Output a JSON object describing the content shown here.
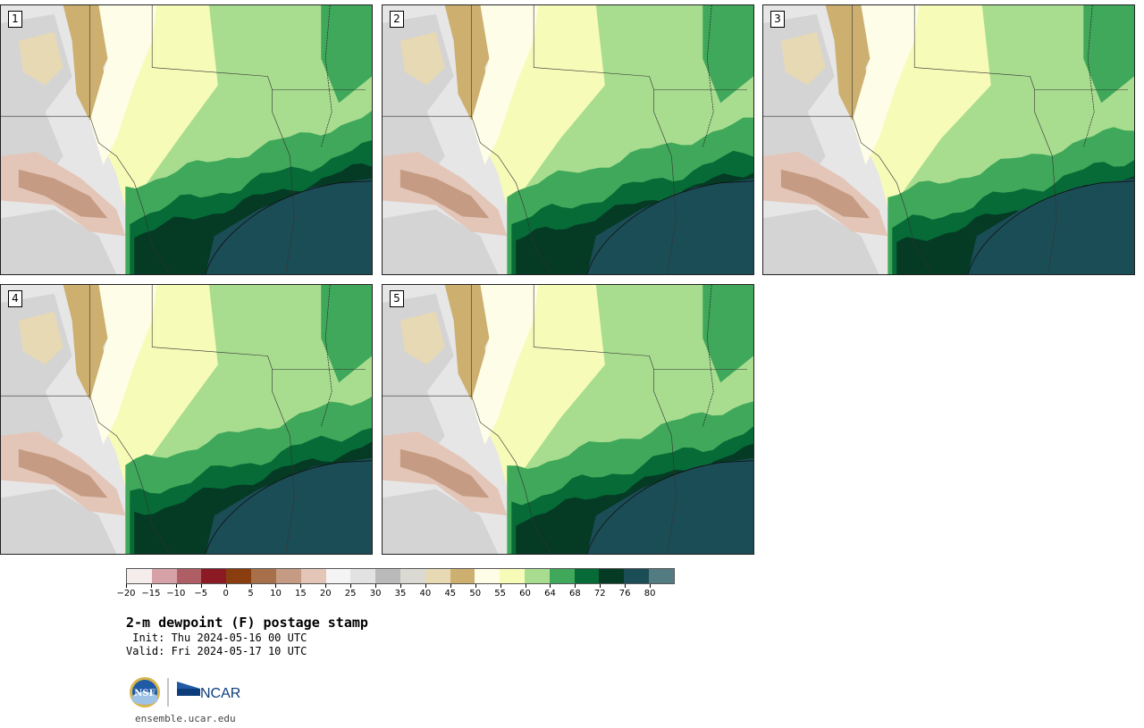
{
  "panels": [
    {
      "label": "1",
      "variant": 0
    },
    {
      "label": "2",
      "variant": 1
    },
    {
      "label": "3",
      "variant": 2
    },
    {
      "label": "4",
      "variant": 3
    },
    {
      "label": "5",
      "variant": 4
    }
  ],
  "colorbar": {
    "colors": [
      "#f5ecec",
      "#d6a2a8",
      "#b05e66",
      "#8b1a25",
      "#8a3d0f",
      "#a8704a",
      "#c59c83",
      "#e3c6b8",
      "#f4f4f4",
      "#e2e2e2",
      "#bababa",
      "#dadad2",
      "#e6d9b3",
      "#cdb06f",
      "#fdfde8",
      "#f7fbb8",
      "#a8dd90",
      "#40a85a",
      "#066b36",
      "#053a25",
      "#1b4d57",
      "#527c82"
    ],
    "ticks": [
      "−20",
      "−15",
      "−10",
      "−5",
      "0",
      "5",
      "10",
      "15",
      "20",
      "25",
      "30",
      "35",
      "40",
      "45",
      "50",
      "55",
      "60",
      "64",
      "68",
      "72",
      "76",
      "80"
    ]
  },
  "title": "2-m dewpoint (F) postage stamp",
  "init": " Init: Thu 2024-05-16 00 UTC",
  "valid": "Valid: Fri 2024-05-17 10 UTC",
  "logos": {
    "nsf": "NSF",
    "ncar": "NCAR"
  },
  "footer_url": "ensemble.ucar.edu"
}
